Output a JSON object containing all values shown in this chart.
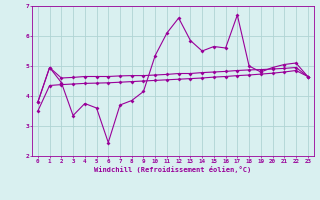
{
  "x": [
    0,
    1,
    2,
    3,
    4,
    5,
    6,
    7,
    8,
    9,
    10,
    11,
    12,
    13,
    14,
    15,
    16,
    17,
    18,
    19,
    20,
    21,
    22,
    23
  ],
  "line1": [
    3.8,
    4.95,
    4.45,
    3.35,
    3.75,
    3.6,
    2.45,
    3.7,
    3.85,
    4.15,
    5.35,
    6.1,
    6.6,
    5.85,
    5.5,
    5.65,
    5.6,
    6.7,
    5.0,
    4.8,
    4.95,
    5.05,
    5.1,
    4.65
  ],
  "line2": [
    3.8,
    4.95,
    4.6,
    4.62,
    4.65,
    4.65,
    4.65,
    4.67,
    4.68,
    4.68,
    4.7,
    4.72,
    4.75,
    4.75,
    4.78,
    4.8,
    4.82,
    4.85,
    4.87,
    4.88,
    4.9,
    4.92,
    4.95,
    4.65
  ],
  "line3": [
    3.5,
    4.35,
    4.38,
    4.4,
    4.42,
    4.43,
    4.44,
    4.46,
    4.48,
    4.5,
    4.52,
    4.54,
    4.56,
    4.58,
    4.6,
    4.63,
    4.65,
    4.68,
    4.7,
    4.73,
    4.76,
    4.8,
    4.85,
    4.65
  ],
  "color": "#990099",
  "bg_color": "#d9f0f0",
  "grid_color": "#b0d4d4",
  "xlabel": "Windchill (Refroidissement éolien,°C)",
  "ylim": [
    2.0,
    7.0
  ],
  "xlim": [
    -0.5,
    23.5
  ],
  "yticks": [
    2,
    3,
    4,
    5,
    6,
    7
  ],
  "xticks": [
    0,
    1,
    2,
    3,
    4,
    5,
    6,
    7,
    8,
    9,
    10,
    11,
    12,
    13,
    14,
    15,
    16,
    17,
    18,
    19,
    20,
    21,
    22,
    23
  ]
}
